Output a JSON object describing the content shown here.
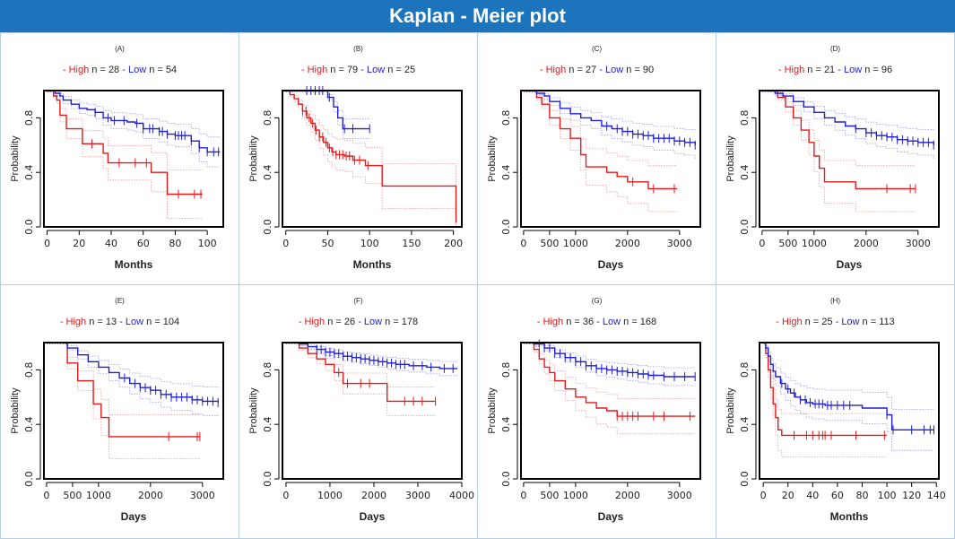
{
  "title": "Kaplan - Meier plot",
  "colors": {
    "high": "#e31a1c",
    "low": "#1f1fd6",
    "banner": "#1c75bc",
    "border": "#b7cfe6"
  },
  "chart_data": [
    {
      "type": "line",
      "label": "(A)",
      "legend": {
        "high_label": "- High",
        "high_n": "n = 28",
        "low_label": "- Low",
        "low_n": "n = 54"
      },
      "xlabel": "Months",
      "ylabel": "Probability",
      "xlim": [
        -2,
        110
      ],
      "ylim": [
        0,
        1
      ],
      "xticks": [
        0,
        20,
        40,
        60,
        80,
        100
      ],
      "yticks": [
        0,
        0.4,
        0.8
      ],
      "series": [
        {
          "name": "High",
          "color": "#e31a1c",
          "x": [
            0,
            4,
            6,
            8,
            12,
            22,
            30,
            35,
            38,
            50,
            60,
            65,
            75,
            80,
            97
          ],
          "y": [
            1,
            0.96,
            0.93,
            0.82,
            0.72,
            0.61,
            0.61,
            0.54,
            0.47,
            0.47,
            0.47,
            0.4,
            0.24,
            0.24,
            0.24
          ],
          "censor_x": [
            28,
            45,
            55,
            62,
            82,
            92,
            96
          ]
        },
        {
          "name": "Low",
          "color": "#1f1fd6",
          "x": [
            0,
            5,
            8,
            10,
            15,
            20,
            25,
            30,
            35,
            40,
            45,
            50,
            55,
            60,
            70,
            75,
            80,
            85,
            90,
            95,
            100,
            108
          ],
          "y": [
            1,
            0.98,
            0.96,
            0.93,
            0.9,
            0.87,
            0.86,
            0.84,
            0.8,
            0.78,
            0.78,
            0.77,
            0.76,
            0.72,
            0.7,
            0.68,
            0.67,
            0.67,
            0.63,
            0.58,
            0.55,
            0.55
          ],
          "censor_x": [
            30,
            38,
            42,
            48,
            56,
            60,
            64,
            66,
            70,
            72,
            75,
            80,
            82,
            84,
            86,
            90,
            95,
            100,
            104,
            107
          ]
        }
      ]
    },
    {
      "type": "line",
      "label": "(B)",
      "legend": {
        "high_label": "- High",
        "high_n": "n = 79",
        "low_label": "- Low",
        "low_n": "n = 25"
      },
      "xlabel": "Months",
      "ylabel": "Probability",
      "xlim": [
        -4,
        210
      ],
      "ylim": [
        0,
        1
      ],
      "xticks": [
        0,
        50,
        100,
        150,
        200
      ],
      "yticks": [
        0,
        0.4,
        0.8
      ],
      "series": [
        {
          "name": "High",
          "color": "#e31a1c",
          "x": [
            0,
            5,
            10,
            15,
            20,
            25,
            30,
            35,
            40,
            45,
            50,
            55,
            60,
            70,
            80,
            95,
            115,
            200,
            203
          ],
          "y": [
            1,
            0.97,
            0.94,
            0.9,
            0.85,
            0.8,
            0.76,
            0.71,
            0.66,
            0.62,
            0.58,
            0.55,
            0.53,
            0.52,
            0.49,
            0.45,
            0.3,
            0.3,
            0.03
          ],
          "censor_x": [
            20,
            24,
            28,
            32,
            36,
            40,
            44,
            48,
            52,
            56,
            60,
            64,
            68,
            72,
            76,
            82,
            88,
            98
          ]
        },
        {
          "name": "Low",
          "color": "#1f1fd6",
          "x": [
            0,
            42,
            50,
            57,
            62,
            68,
            100
          ],
          "y": [
            1,
            1,
            0.95,
            0.88,
            0.8,
            0.72,
            0.72
          ],
          "censor_x": [
            25,
            30,
            35,
            40,
            44,
            52,
            70,
            80,
            100
          ]
        }
      ]
    },
    {
      "type": "line",
      "label": "(C)",
      "legend": {
        "high_label": "- High",
        "high_n": "n = 27",
        "low_label": "- Low",
        "low_n": "n = 90"
      },
      "xlabel": "Days",
      "ylabel": "Probability",
      "xlim": [
        -50,
        3400
      ],
      "ylim": [
        0,
        1
      ],
      "xticks": [
        0,
        500,
        1000,
        2000,
        3000
      ],
      "yticks": [
        0,
        0.4,
        0.8
      ],
      "series": [
        {
          "name": "High",
          "color": "#e31a1c",
          "x": [
            0,
            250,
            350,
            500,
            700,
            900,
            1100,
            1200,
            1600,
            1800,
            2000,
            2400,
            2600,
            2950
          ],
          "y": [
            1,
            0.95,
            0.9,
            0.8,
            0.72,
            0.65,
            0.53,
            0.44,
            0.4,
            0.37,
            0.33,
            0.28,
            0.28,
            0.28
          ],
          "censor_x": [
            2100,
            2500,
            2900
          ]
        },
        {
          "name": "Low",
          "color": "#1f1fd6",
          "x": [
            0,
            250,
            400,
            500,
            700,
            900,
            1100,
            1300,
            1500,
            1700,
            1900,
            2100,
            2300,
            2500,
            2700,
            2900,
            3100,
            3300
          ],
          "y": [
            1,
            0.98,
            0.96,
            0.92,
            0.87,
            0.83,
            0.8,
            0.78,
            0.74,
            0.72,
            0.7,
            0.68,
            0.67,
            0.65,
            0.65,
            0.63,
            0.62,
            0.6
          ],
          "censor_x": [
            1600,
            1800,
            1900,
            2000,
            2100,
            2200,
            2300,
            2400,
            2500,
            2600,
            2700,
            2800,
            2900,
            3000,
            3100,
            3200,
            3300
          ]
        }
      ]
    },
    {
      "type": "line",
      "label": "(D)",
      "legend": {
        "high_label": "- High",
        "high_n": "n = 21",
        "low_label": "- Low",
        "low_n": "n = 96"
      },
      "xlabel": "Days",
      "ylabel": "Probability",
      "xlim": [
        -50,
        3400
      ],
      "ylim": [
        0,
        1
      ],
      "xticks": [
        0,
        500,
        1000,
        2000,
        3000
      ],
      "yticks": [
        0,
        0.4,
        0.8
      ],
      "series": [
        {
          "name": "High",
          "color": "#e31a1c",
          "x": [
            0,
            300,
            450,
            600,
            750,
            900,
            1000,
            1100,
            1200,
            1500,
            1800,
            2400,
            2950
          ],
          "y": [
            1,
            0.95,
            0.88,
            0.8,
            0.71,
            0.62,
            0.52,
            0.43,
            0.33,
            0.33,
            0.28,
            0.28,
            0.28
          ],
          "censor_x": [
            2400,
            2850,
            2950
          ]
        },
        {
          "name": "Low",
          "color": "#1f1fd6",
          "x": [
            0,
            250,
            400,
            600,
            800,
            1000,
            1200,
            1400,
            1600,
            1800,
            2000,
            2200,
            2400,
            2600,
            2800,
            3000,
            3300
          ],
          "y": [
            1,
            0.98,
            0.96,
            0.92,
            0.88,
            0.84,
            0.8,
            0.77,
            0.74,
            0.72,
            0.69,
            0.67,
            0.66,
            0.64,
            0.63,
            0.62,
            0.6
          ],
          "censor_x": [
            1800,
            2000,
            2100,
            2200,
            2300,
            2400,
            2500,
            2600,
            2700,
            2800,
            2900,
            3000,
            3100,
            3200,
            3300
          ]
        }
      ]
    },
    {
      "type": "line",
      "label": "(E)",
      "legend": {
        "high_label": "- High",
        "high_n": "n = 13",
        "low_label": "- Low",
        "low_n": "n = 104"
      },
      "xlabel": "Days",
      "ylabel": "Probability",
      "xlim": [
        -50,
        3400
      ],
      "ylim": [
        0,
        1
      ],
      "xticks": [
        0,
        500,
        1000,
        2000,
        3000
      ],
      "yticks": [
        0,
        0.4,
        0.8
      ],
      "series": [
        {
          "name": "High",
          "color": "#e31a1c",
          "x": [
            0,
            300,
            400,
            600,
            900,
            1050,
            1200,
            2350,
            2950
          ],
          "y": [
            1,
            1,
            0.85,
            0.72,
            0.55,
            0.45,
            0.31,
            0.31,
            0.31
          ],
          "censor_x": [
            2350,
            2900,
            2950
          ]
        },
        {
          "name": "Low",
          "color": "#1f1fd6",
          "x": [
            0,
            250,
            400,
            600,
            800,
            1000,
            1200,
            1400,
            1600,
            1800,
            2000,
            2200,
            2400,
            2600,
            2800,
            3000,
            3300
          ],
          "y": [
            1,
            1,
            0.96,
            0.91,
            0.86,
            0.82,
            0.78,
            0.74,
            0.7,
            0.67,
            0.65,
            0.62,
            0.6,
            0.6,
            0.58,
            0.57,
            0.56
          ],
          "censor_x": [
            1500,
            1700,
            1800,
            1900,
            2000,
            2100,
            2200,
            2300,
            2400,
            2500,
            2600,
            2700,
            2800,
            2900,
            3000,
            3100,
            3200,
            3300
          ]
        }
      ]
    },
    {
      "type": "line",
      "label": "(F)",
      "legend": {
        "high_label": "- High",
        "high_n": "n = 26",
        "low_label": "- Low",
        "low_n": "n = 178"
      },
      "xlabel": "Days",
      "ylabel": "Probability",
      "xlim": [
        -80,
        4000
      ],
      "ylim": [
        0,
        1
      ],
      "xticks": [
        0,
        1000,
        2000,
        3000,
        4000
      ],
      "yticks": [
        0,
        0.4,
        0.8
      ],
      "series": [
        {
          "name": "High",
          "color": "#e31a1c",
          "x": [
            0,
            300,
            500,
            700,
            900,
            1100,
            1300,
            2200,
            2300,
            3400
          ],
          "y": [
            1,
            0.96,
            0.92,
            0.88,
            0.84,
            0.78,
            0.7,
            0.7,
            0.57,
            0.57
          ],
          "censor_x": [
            1200,
            1400,
            1700,
            1900,
            2700,
            2900,
            3100,
            3400
          ]
        },
        {
          "name": "Low",
          "color": "#1f1fd6",
          "x": [
            0,
            300,
            500,
            700,
            900,
            1100,
            1300,
            1500,
            1700,
            1900,
            2100,
            2300,
            2500,
            2800,
            3200,
            3500,
            3900
          ],
          "y": [
            1,
            0.99,
            0.97,
            0.95,
            0.93,
            0.92,
            0.9,
            0.89,
            0.88,
            0.87,
            0.86,
            0.85,
            0.84,
            0.83,
            0.82,
            0.81,
            0.81
          ],
          "censor_x": [
            700,
            800,
            900,
            1000,
            1100,
            1200,
            1300,
            1400,
            1500,
            1600,
            1700,
            1800,
            1900,
            2000,
            2100,
            2200,
            2300,
            2400,
            2500,
            2600,
            2700,
            2900,
            3100,
            3300,
            3600,
            3800
          ]
        }
      ]
    },
    {
      "type": "line",
      "label": "(G)",
      "legend": {
        "high_label": "- High",
        "high_n": "n = 36",
        "low_label": "- Low",
        "low_n": "n = 168"
      },
      "xlabel": "Days",
      "ylabel": "Probability",
      "xlim": [
        -50,
        3400
      ],
      "ylim": [
        0,
        1
      ],
      "xticks": [
        0,
        500,
        1000,
        2000,
        3000
      ],
      "yticks": [
        0,
        0.4,
        0.8
      ],
      "series": [
        {
          "name": "High",
          "color": "#e31a1c",
          "x": [
            0,
            200,
            300,
            400,
            500,
            600,
            800,
            1000,
            1200,
            1400,
            1600,
            1800,
            2000,
            3300
          ],
          "y": [
            1,
            0.95,
            0.88,
            0.82,
            0.78,
            0.72,
            0.66,
            0.6,
            0.56,
            0.52,
            0.5,
            0.46,
            0.46,
            0.46
          ],
          "censor_x": [
            1800,
            1900,
            2000,
            2100,
            2200,
            2500,
            2700,
            3200
          ]
        },
        {
          "name": "Low",
          "color": "#1f1fd6",
          "x": [
            0,
            200,
            400,
            600,
            800,
            1000,
            1200,
            1400,
            1600,
            1800,
            2000,
            2200,
            2400,
            2700,
            3000,
            3300
          ],
          "y": [
            1,
            0.99,
            0.96,
            0.92,
            0.89,
            0.86,
            0.83,
            0.81,
            0.8,
            0.79,
            0.78,
            0.77,
            0.76,
            0.75,
            0.75,
            0.75
          ],
          "censor_x": [
            300,
            400,
            500,
            600,
            700,
            800,
            900,
            1000,
            1100,
            1200,
            1300,
            1400,
            1500,
            1600,
            1700,
            1800,
            1900,
            2000,
            2100,
            2200,
            2300,
            2400,
            2500,
            2700,
            2900,
            3100,
            3300
          ]
        }
      ]
    },
    {
      "type": "line",
      "label": "(H)",
      "legend": {
        "high_label": "- High",
        "high_n": "n = 25",
        "low_label": "- Low",
        "low_n": "n = 113"
      },
      "xlabel": "Months",
      "ylabel": "Probability",
      "xlim": [
        -3,
        142
      ],
      "ylim": [
        0,
        1
      ],
      "xticks": [
        0,
        20,
        40,
        60,
        80,
        100,
        120,
        140
      ],
      "yticks": [
        0,
        0.4,
        0.8
      ],
      "series": [
        {
          "name": "High",
          "color": "#e31a1c",
          "x": [
            0,
            2,
            4,
            6,
            8,
            10,
            12,
            15,
            20,
            100
          ],
          "y": [
            1,
            0.92,
            0.8,
            0.67,
            0.55,
            0.45,
            0.36,
            0.32,
            0.32,
            0.32
          ],
          "censor_x": [
            25,
            35,
            40,
            45,
            48,
            50,
            55,
            75,
            98
          ]
        },
        {
          "name": "Low",
          "color": "#1f1fd6",
          "x": [
            0,
            2,
            4,
            6,
            8,
            10,
            14,
            18,
            22,
            26,
            30,
            35,
            40,
            50,
            60,
            80,
            100,
            104,
            138
          ],
          "y": [
            1,
            0.96,
            0.9,
            0.84,
            0.79,
            0.75,
            0.7,
            0.66,
            0.63,
            0.6,
            0.58,
            0.56,
            0.55,
            0.54,
            0.54,
            0.52,
            0.47,
            0.36,
            0.36
          ],
          "censor_x": [
            15,
            20,
            25,
            30,
            34,
            38,
            42,
            45,
            48,
            52,
            55,
            60,
            65,
            70,
            100,
            105,
            120,
            130,
            135,
            138
          ]
        }
      ]
    }
  ]
}
